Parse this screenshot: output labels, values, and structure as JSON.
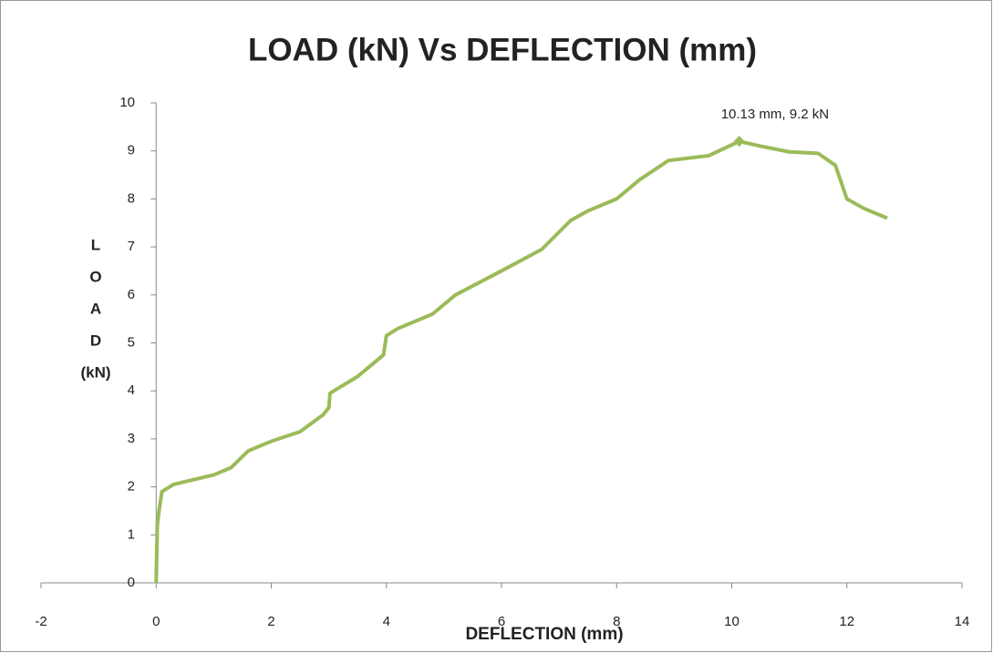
{
  "chart_data": {
    "type": "line",
    "title": "LOAD (kN) Vs DEFLECTION (mm)",
    "xlabel": "DEFLECTION (mm)",
    "ylabel_lines": [
      "L",
      "O",
      "A",
      "D",
      "(kN)"
    ],
    "xlim": [
      -2,
      14
    ],
    "ylim": [
      0,
      10
    ],
    "xticks": [
      -2,
      0,
      2,
      4,
      6,
      8,
      10,
      12,
      14
    ],
    "yticks": [
      0,
      1,
      2,
      3,
      4,
      5,
      6,
      7,
      8,
      9,
      10
    ],
    "grid": false,
    "series": [
      {
        "color": "#9bbb59",
        "x": [
          0,
          0.02,
          0.05,
          0.1,
          0.3,
          1,
          1.3,
          1.6,
          2,
          2.5,
          2.9,
          3.0,
          3.02,
          3.5,
          3.95,
          4.0,
          4.2,
          4.8,
          5.2,
          6,
          6.7,
          7.2,
          7.5,
          8,
          8.4,
          8.9,
          9.6,
          10.13,
          10.5,
          11,
          11.5,
          11.8,
          12,
          12.3,
          12.7
        ],
        "values": [
          0,
          1.2,
          1.5,
          1.9,
          2.05,
          2.25,
          2.4,
          2.75,
          2.95,
          3.15,
          3.5,
          3.65,
          3.95,
          4.3,
          4.75,
          5.15,
          5.3,
          5.6,
          6.0,
          6.5,
          6.95,
          7.55,
          7.75,
          8.0,
          8.4,
          8.8,
          8.9,
          9.2,
          9.1,
          8.98,
          8.95,
          8.7,
          8.0,
          7.8,
          7.6
        ]
      }
    ],
    "annotation": {
      "text": "10.13 mm, 9.2 kN",
      "x": 10.13,
      "y": 9.2
    }
  }
}
